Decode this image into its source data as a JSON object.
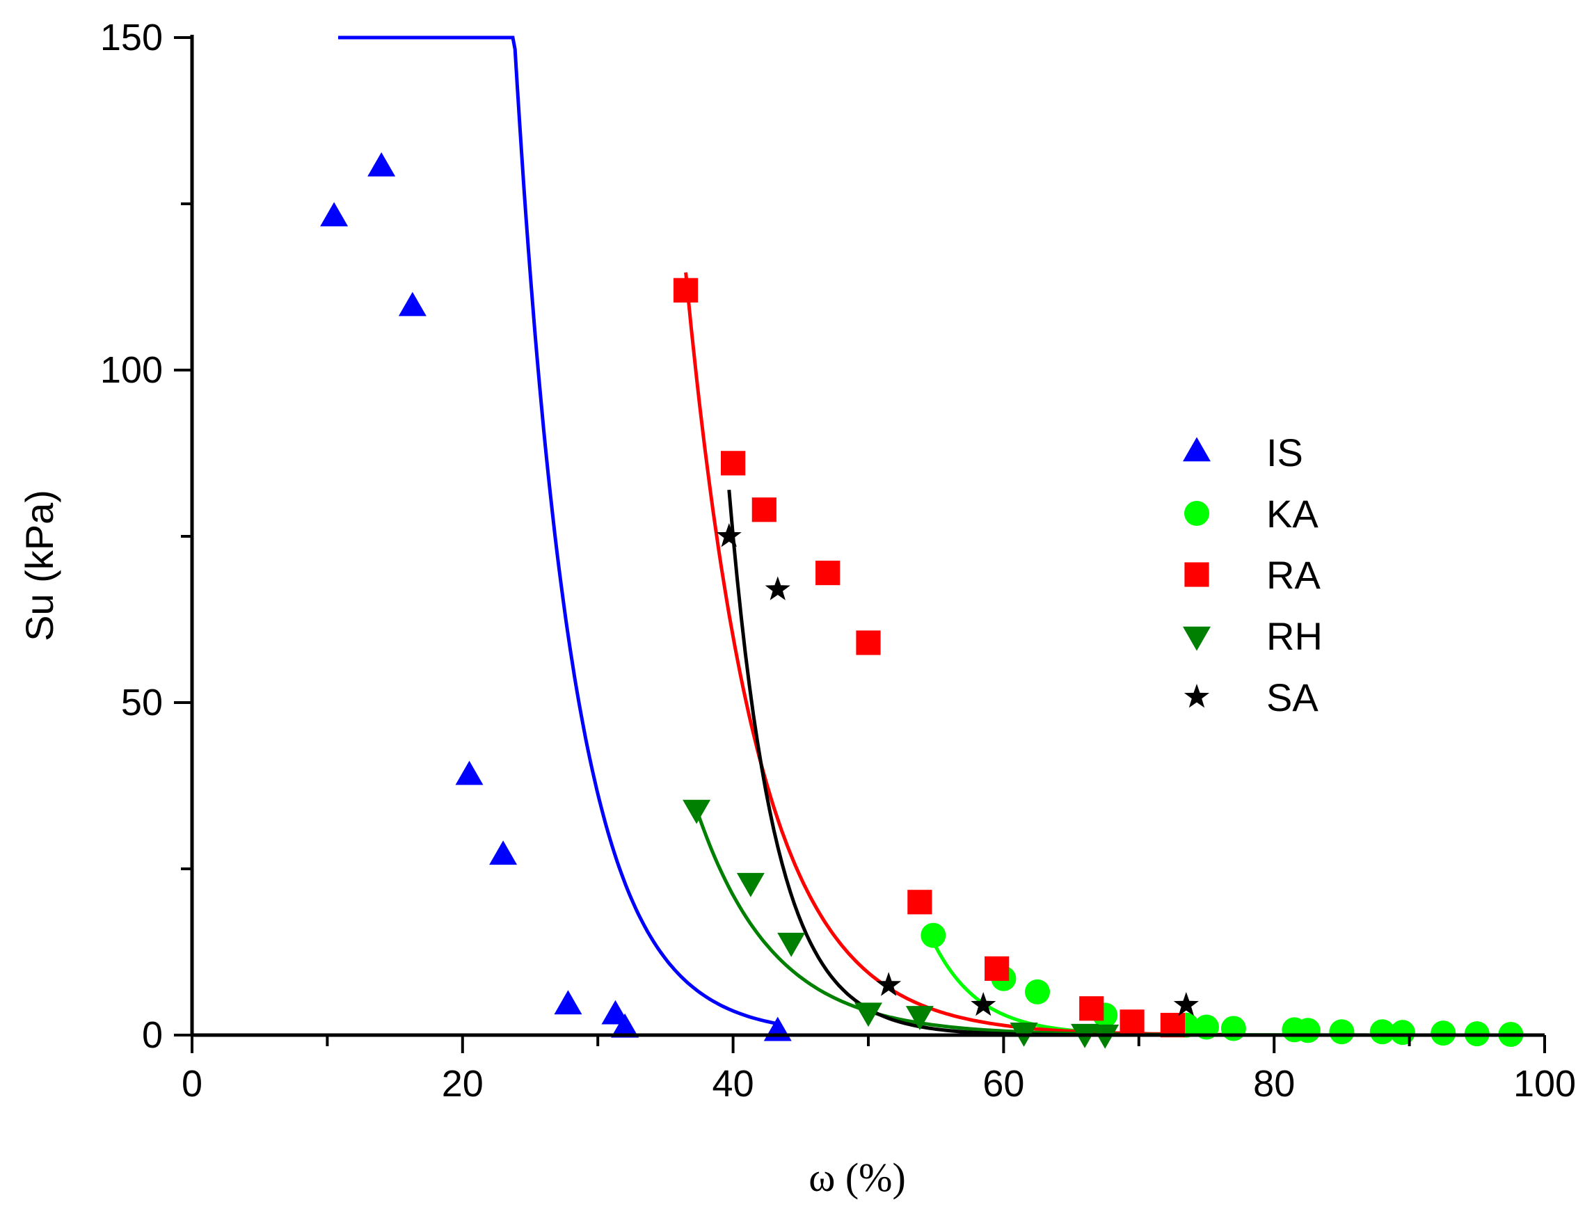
{
  "chart_data": {
    "type": "scatter",
    "title": "",
    "xlabel": "ω (%)",
    "ylabel": "Su (kPa)",
    "xlim": [
      0,
      100
    ],
    "ylim": [
      0,
      150
    ],
    "x_ticks": [
      "0",
      "20",
      "40",
      "60",
      "80",
      "100"
    ],
    "y_ticks": [
      "0",
      "50",
      "100",
      "150"
    ],
    "legend_position": "right",
    "series": [
      {
        "name": "IS",
        "marker": "triangle-up",
        "color": "#0000ff",
        "x": [
          10.5,
          14.0,
          16.3,
          20.5,
          23.0,
          27.8,
          31.3,
          32.0,
          43.3
        ],
        "y": [
          123.0,
          130.5,
          109.5,
          39.0,
          27.0,
          4.5,
          3.0,
          1.0,
          0.5
        ],
        "fit": {
          "x_start": 10.8,
          "x_end": 43.5,
          "a": 36000.0,
          "b": 0.23
        }
      },
      {
        "name": "KA",
        "marker": "circle",
        "color": "#00ff00",
        "x": [
          54.8,
          60.0,
          62.5,
          67.5,
          73.5,
          75.0,
          77.0,
          81.5,
          82.5,
          85.0,
          88.0,
          89.5,
          92.5,
          95.0,
          97.5
        ],
        "y": [
          15.0,
          8.5,
          6.5,
          3.0,
          1.5,
          1.2,
          1.0,
          0.8,
          0.7,
          0.5,
          0.5,
          0.4,
          0.3,
          0.2,
          0.1
        ],
        "fit": {
          "x_start": 54.5,
          "x_end": 100.0,
          "a": 125000000.0,
          "b": 0.292
        }
      },
      {
        "name": "RA",
        "marker": "square",
        "color": "#ff0000",
        "x": [
          36.5,
          40.0,
          42.3,
          47.0,
          50.0,
          53.8,
          59.5,
          66.5,
          69.5,
          72.5
        ],
        "y": [
          112.0,
          86.0,
          79.0,
          69.5,
          59.0,
          20.0,
          10.0,
          4.0,
          2.0,
          1.5
        ],
        "fit": {
          "x_start": 36.5,
          "x_end": 77.0,
          "a": 100000.0,
          "b": 0.1855
        }
      },
      {
        "name": "RH",
        "marker": "triangle-down",
        "color": "#008000",
        "x": [
          37.3,
          41.3,
          44.3,
          50.0,
          53.8,
          61.5,
          66.0,
          67.5
        ],
        "y": [
          34.0,
          23.0,
          14.0,
          3.5,
          3.0,
          0.5,
          0.3,
          0.2
        ],
        "fit": {
          "x_start": 37.3,
          "x_end": 90.0,
          "a": 25000.0,
          "b": 0.177
        }
      },
      {
        "name": "SA",
        "marker": "star",
        "color": "#000000",
        "x": [
          39.7,
          43.3,
          51.5,
          58.5,
          73.5
        ],
        "y": [
          75.0,
          67.0,
          7.5,
          4.5,
          4.5
        ],
        "fit": {
          "x_start": 39.7,
          "x_end": 100.0,
          "a": 10000000.0,
          "b": 0.295
        }
      }
    ]
  }
}
